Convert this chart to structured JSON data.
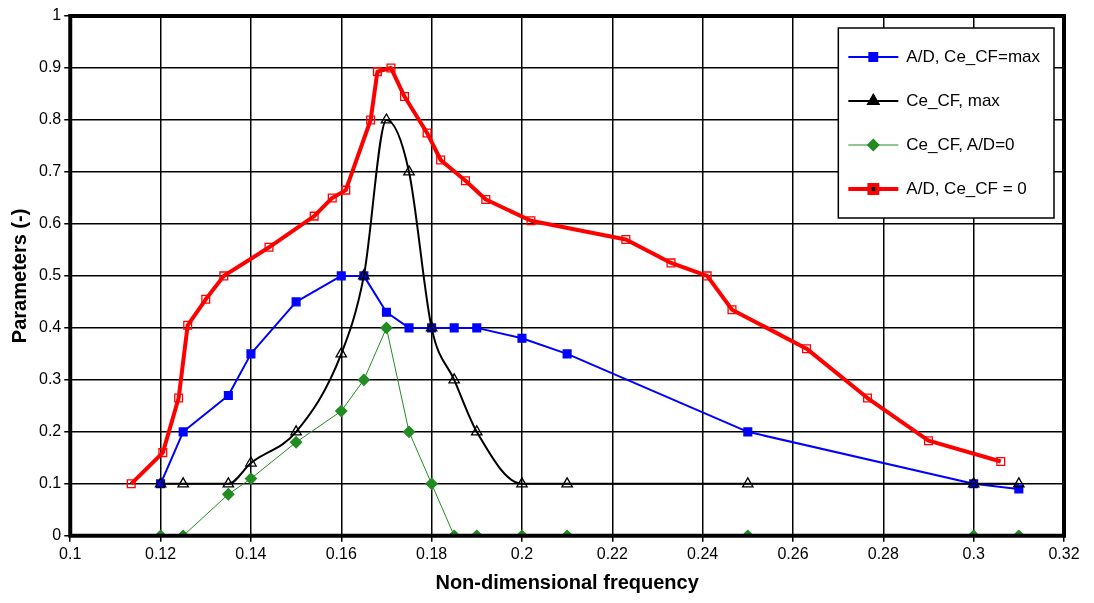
{
  "chart_data": {
    "type": "line",
    "xlabel": "Non-dimensional frequency",
    "ylabel": "Parameters (-)",
    "xlim": [
      0.1,
      0.32
    ],
    "xticks": [
      0.1,
      0.12,
      0.14,
      0.16,
      0.18,
      0.2,
      0.22,
      0.24,
      0.26,
      0.28,
      0.3,
      0.32
    ],
    "ylim": [
      0,
      1
    ],
    "yticks": [
      0,
      0.1,
      0.2,
      0.3,
      0.4,
      0.5,
      0.6,
      0.7,
      0.8,
      0.9,
      1
    ],
    "grid": true,
    "legend": "top right",
    "line_style": "solid",
    "series": [
      {
        "name": "A/D, Ce_CF=max",
        "color": "#0000ff",
        "marker": "square",
        "x": [
          0.12,
          0.125,
          0.135,
          0.14,
          0.15,
          0.16,
          0.165,
          0.17,
          0.175,
          0.18,
          0.185,
          0.19,
          0.2,
          0.21,
          0.25,
          0.3,
          0.31
        ],
        "values": [
          0.1,
          0.2,
          0.27,
          0.35,
          0.45,
          0.5,
          0.5,
          0.43,
          0.4,
          0.4,
          0.4,
          0.4,
          0.38,
          0.35,
          0.2,
          0.1,
          0.09
        ]
      },
      {
        "name": "Ce_CF, max",
        "color": "#000000",
        "marker": "triangle",
        "x": [
          0.12,
          0.125,
          0.135,
          0.14,
          0.15,
          0.16,
          0.165,
          0.17,
          0.175,
          0.18,
          0.185,
          0.19,
          0.2,
          0.21,
          0.25,
          0.3,
          0.31
        ],
        "values": [
          0.1,
          0.1,
          0.1,
          0.14,
          0.2,
          0.35,
          0.5,
          0.8,
          0.7,
          0.4,
          0.3,
          0.2,
          0.1,
          0.1,
          0.1,
          0.1,
          0.1
        ]
      },
      {
        "name": "Ce_CF, A/D=0",
        "color": "#228b22",
        "marker": "diamond",
        "x": [
          0.12,
          0.125,
          0.135,
          0.14,
          0.15,
          0.16,
          0.165,
          0.17,
          0.175,
          0.18,
          0.185,
          0.19,
          0.2,
          0.21,
          0.25,
          0.3,
          0.31
        ],
        "values": [
          0,
          0,
          0.08,
          0.11,
          0.18,
          0.24,
          0.3,
          0.4,
          0.2,
          0.1,
          0,
          0,
          0,
          0,
          0,
          0,
          0
        ]
      },
      {
        "name": "A/D, Ce_CF = 0",
        "color": "#ff0000",
        "marker": "square",
        "x": [
          0.1135,
          0.1205,
          0.124,
          0.126,
          0.13,
          0.134,
          0.144,
          0.154,
          0.158,
          0.161,
          0.1665,
          0.168,
          0.171,
          0.174,
          0.179,
          0.182,
          0.1875,
          0.192,
          0.202,
          0.223,
          0.233,
          0.241,
          0.2465,
          0.263,
          0.2765,
          0.29,
          0.306
        ],
        "values": [
          0.1,
          0.16,
          0.265,
          0.405,
          0.455,
          0.5,
          0.555,
          0.615,
          0.65,
          0.665,
          0.8,
          0.893,
          0.9,
          0.845,
          0.775,
          0.723,
          0.683,
          0.647,
          0.606,
          0.57,
          0.525,
          0.5,
          0.435,
          0.36,
          0.265,
          0.183,
          0.143
        ]
      }
    ]
  }
}
